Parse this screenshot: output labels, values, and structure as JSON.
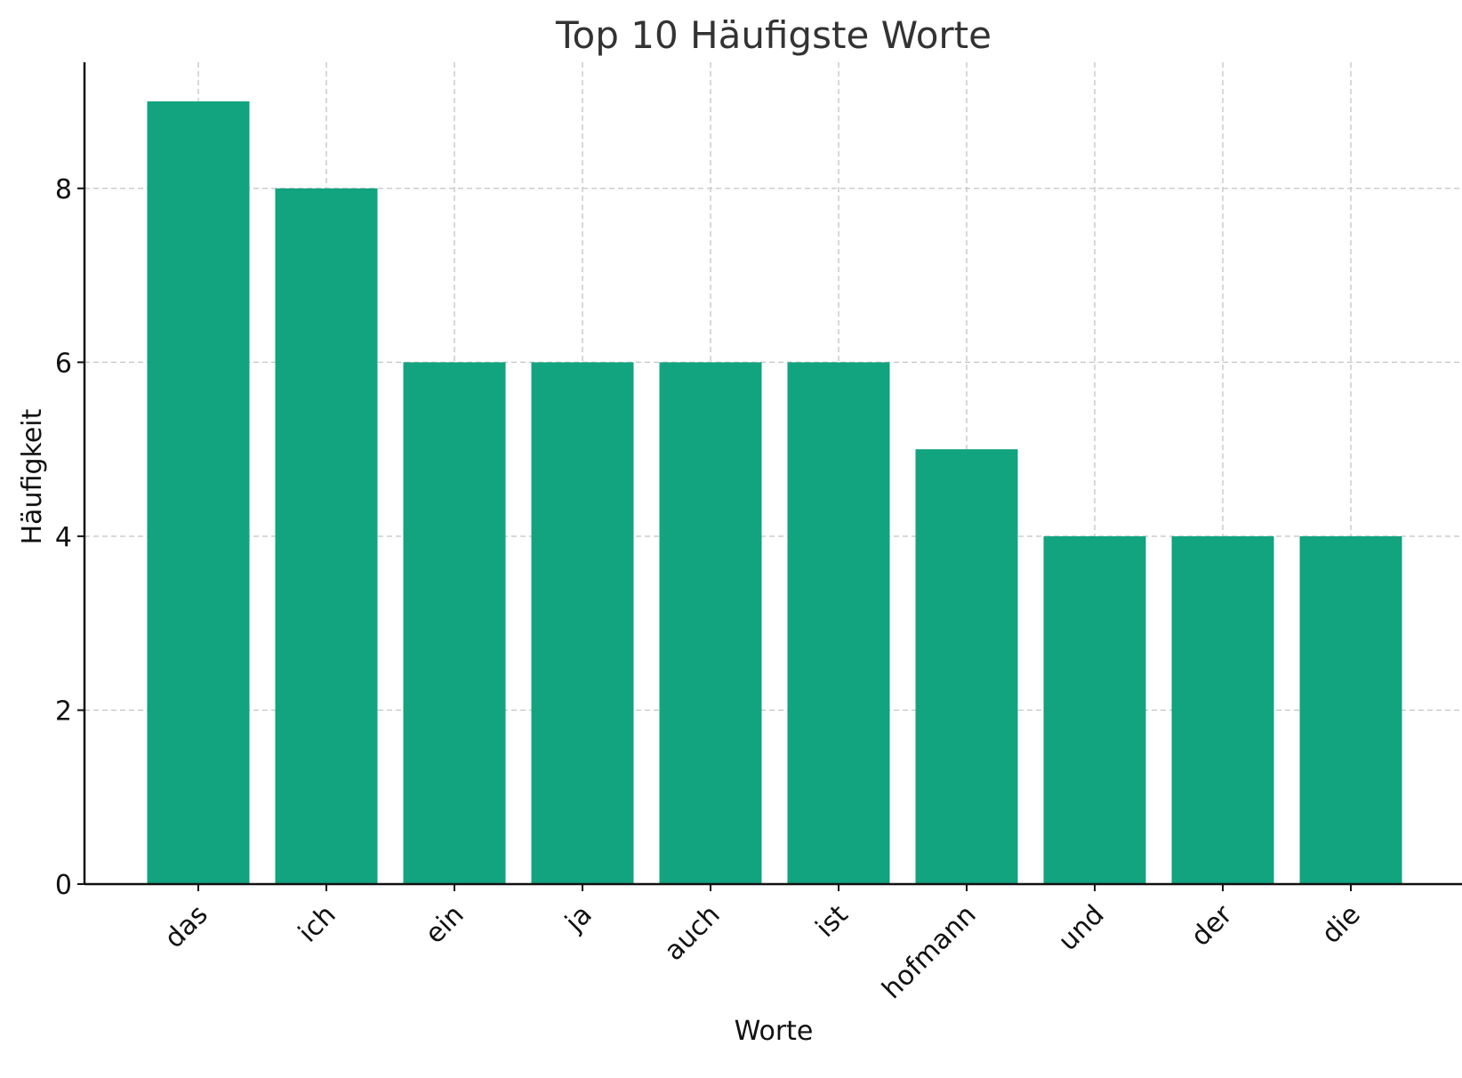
{
  "chart_data": {
    "type": "bar",
    "title": "Top 10 Häufigste Worte",
    "xlabel": "Worte",
    "ylabel": "Häufigkeit",
    "categories": [
      "das",
      "ich",
      "ein",
      "ja",
      "auch",
      "ist",
      "hofmann",
      "und",
      "der",
      "die"
    ],
    "values": [
      9,
      8,
      6,
      6,
      6,
      6,
      5,
      4,
      4,
      4
    ],
    "ylim": [
      0,
      9.45
    ],
    "yticks": [
      0,
      2,
      4,
      6,
      8
    ],
    "grid": true,
    "bar_color": "#12a37f"
  }
}
